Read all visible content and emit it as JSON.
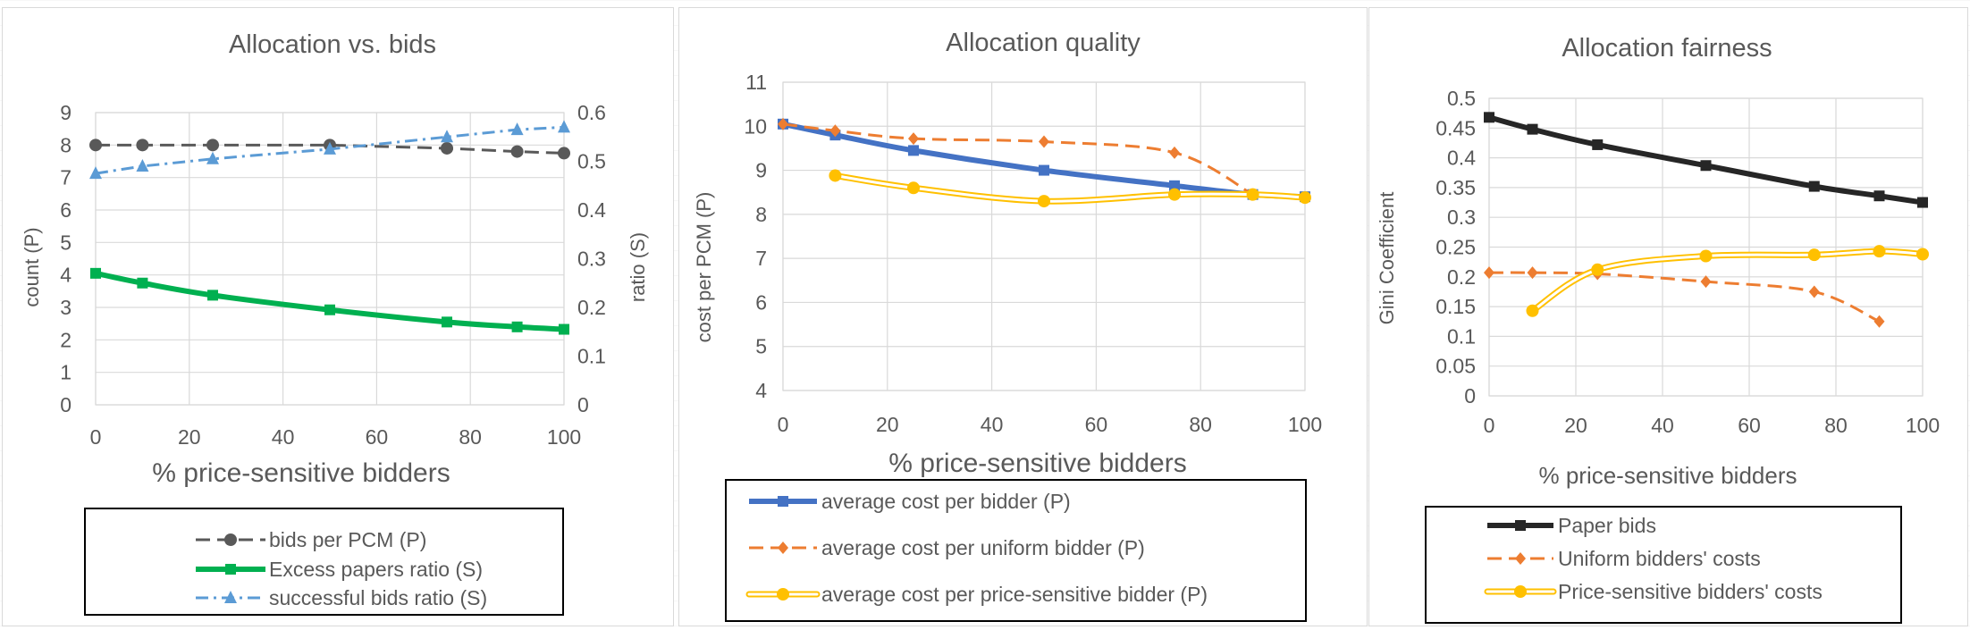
{
  "chart_data": [
    {
      "type": "line",
      "title": "Allocation vs. bids",
      "xlabel": "% price-sensitive bidders",
      "ylabel": "count (P)",
      "y2label": "ratio (S)",
      "x": [
        0,
        10,
        25,
        50,
        75,
        90,
        100
      ],
      "xlim": [
        0,
        100
      ],
      "xticks": [
        "0",
        "20",
        "40",
        "60",
        "80",
        "100"
      ],
      "ylim": [
        0,
        9
      ],
      "yticks": [
        "0",
        "1",
        "2",
        "3",
        "4",
        "5",
        "6",
        "7",
        "8",
        "9"
      ],
      "y2lim": [
        0,
        0.6
      ],
      "y2ticks": [
        "0",
        "0.1",
        "0.2",
        "0.3",
        "0.4",
        "0.5",
        "0.6"
      ],
      "grid": true,
      "legend": "bottom",
      "series": [
        {
          "name": "bids per PCM (P)",
          "axis": "primary",
          "values": [
            8.0,
            8.0,
            8.0,
            8.0,
            7.9,
            7.8,
            7.75
          ],
          "color": "#595959",
          "marker": "circle",
          "dash": "dashed"
        },
        {
          "name": "Excess papers ratio (S)",
          "axis": "secondary",
          "values": [
            0.27,
            0.25,
            0.225,
            0.195,
            0.17,
            0.16,
            0.155
          ],
          "color": "#00b050",
          "marker": "square",
          "dash": "solid"
        },
        {
          "name": "successful bids ratio (S)",
          "axis": "secondary",
          "values": [
            0.475,
            0.49,
            0.505,
            0.525,
            0.55,
            0.565,
            0.57
          ],
          "color": "#5b9bd5",
          "marker": "triangle",
          "dash": "dashdot"
        }
      ]
    },
    {
      "type": "line",
      "title": "Allocation quality",
      "xlabel": "% price-sensitive bidders",
      "ylabel": "cost per PCM (P)",
      "x": [
        0,
        10,
        25,
        50,
        75,
        90,
        100
      ],
      "xlim": [
        0,
        100
      ],
      "xticks": [
        "0",
        "20",
        "40",
        "60",
        "80",
        "100"
      ],
      "ylim": [
        4,
        11
      ],
      "yticks": [
        "4",
        "5",
        "6",
        "7",
        "8",
        "9",
        "10",
        "11"
      ],
      "grid": true,
      "legend": "bottom",
      "series": [
        {
          "name": "average cost per bidder (P)",
          "x": [
            0,
            10,
            25,
            50,
            75,
            90,
            100
          ],
          "values": [
            10.05,
            9.8,
            9.45,
            9.0,
            8.65,
            8.45,
            8.4
          ],
          "color": "#4472c4",
          "marker": "square",
          "dash": "solid"
        },
        {
          "name": "average cost per uniform bidder (P)",
          "x": [
            0,
            10,
            25,
            50,
            75,
            90
          ],
          "values": [
            10.05,
            9.9,
            9.72,
            9.65,
            9.4,
            8.45
          ],
          "color": "#ed7d31",
          "marker": "diamond",
          "dash": "dashed"
        },
        {
          "name": "average cost per price-sensitive bidder (P)",
          "x": [
            10,
            25,
            50,
            75,
            90,
            100
          ],
          "values": [
            8.88,
            8.6,
            8.3,
            8.45,
            8.45,
            8.38
          ],
          "color": "#ffc000",
          "marker": "circle",
          "dash": "double"
        }
      ]
    },
    {
      "type": "line",
      "title": "Allocation fairness",
      "xlabel": "% price-sensitive bidders",
      "ylabel": "Gini Coefficient",
      "x": [
        0,
        10,
        25,
        50,
        75,
        90,
        100
      ],
      "xlim": [
        0,
        100
      ],
      "xticks": [
        "0",
        "20",
        "40",
        "60",
        "80",
        "100"
      ],
      "ylim": [
        0,
        0.5
      ],
      "yticks": [
        "0",
        "0.05",
        "0.1",
        "0.15",
        "0.2",
        "0.25",
        "0.3",
        "0.35",
        "0.4",
        "0.45",
        "0.5"
      ],
      "grid": true,
      "legend": "bottom",
      "series": [
        {
          "name": "Paper bids",
          "x": [
            0,
            10,
            25,
            50,
            75,
            90,
            100
          ],
          "values": [
            0.468,
            0.448,
            0.422,
            0.387,
            0.352,
            0.336,
            0.325
          ],
          "color": "#262626",
          "marker": "square",
          "dash": "solid"
        },
        {
          "name": "Uniform bidders' costs",
          "x": [
            0,
            10,
            25,
            50,
            75,
            90
          ],
          "values": [
            0.207,
            0.207,
            0.205,
            0.192,
            0.175,
            0.125
          ],
          "color": "#ed7d31",
          "marker": "diamond",
          "dash": "dashed"
        },
        {
          "name": "Price-sensitive bidders' costs",
          "x": [
            10,
            25,
            50,
            75,
            90,
            100
          ],
          "values": [
            0.143,
            0.212,
            0.235,
            0.237,
            0.243,
            0.238
          ],
          "color": "#ffc000",
          "marker": "circle",
          "dash": "double"
        }
      ]
    }
  ]
}
